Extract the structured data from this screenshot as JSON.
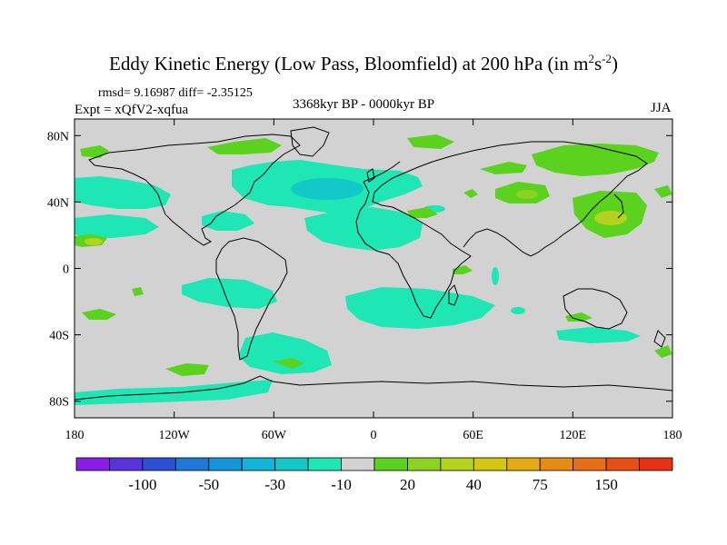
{
  "title": {
    "main": "Eddy Kinetic Energy (Low Pass, Bloomfield) at 200 hPa (in m",
    "sup1": "2",
    "mid": "s",
    "sup2": "-2",
    "end": ")"
  },
  "stats_line": "rmsd= 9.16987 diff= -2.35125",
  "experiment_line": "Expt = xQfV2-xqfua",
  "period_label": "3368kyr BP - 0000kyr BP",
  "season_label": "JJA",
  "map": {
    "lon_range": [
      -180,
      180
    ],
    "lat_range": [
      -90,
      90
    ],
    "background_color": "#d2d2d2",
    "y_ticks": [
      {
        "label": "80N",
        "lat": 80
      },
      {
        "label": "40N",
        "lat": 40
      },
      {
        "label": "0",
        "lat": 0
      },
      {
        "label": "40S",
        "lat": -40
      },
      {
        "label": "80S",
        "lat": -80
      }
    ],
    "x_ticks": [
      {
        "label": "180",
        "lon": -180
      },
      {
        "label": "120W",
        "lon": -120
      },
      {
        "label": "60W",
        "lon": -60
      },
      {
        "label": "0",
        "lon": 0
      },
      {
        "label": "60E",
        "lon": 60
      },
      {
        "label": "120E",
        "lon": 120
      },
      {
        "label": "180",
        "lon": 180
      }
    ]
  },
  "colorbar": {
    "colors": [
      "#8a1ee6",
      "#5a32dc",
      "#2e50d2",
      "#1e78d6",
      "#1496d8",
      "#14b4d8",
      "#14c8c8",
      "#1ee6b4",
      "#d2d2d2",
      "#5ad21e",
      "#8cd21e",
      "#b4d21e",
      "#d2c814",
      "#e6aa14",
      "#e68c14",
      "#e66e14",
      "#e65014",
      "#e63214"
    ],
    "labels": [
      {
        "text": "-100",
        "after_box": 2
      },
      {
        "text": "-50",
        "after_box": 4
      },
      {
        "text": "-30",
        "after_box": 6
      },
      {
        "text": "-10",
        "after_box": 8
      },
      {
        "text": "20",
        "after_box": 10
      },
      {
        "text": "40",
        "after_box": 12
      },
      {
        "text": "75",
        "after_box": 14
      },
      {
        "text": "150",
        "after_box": 16
      }
    ]
  }
}
